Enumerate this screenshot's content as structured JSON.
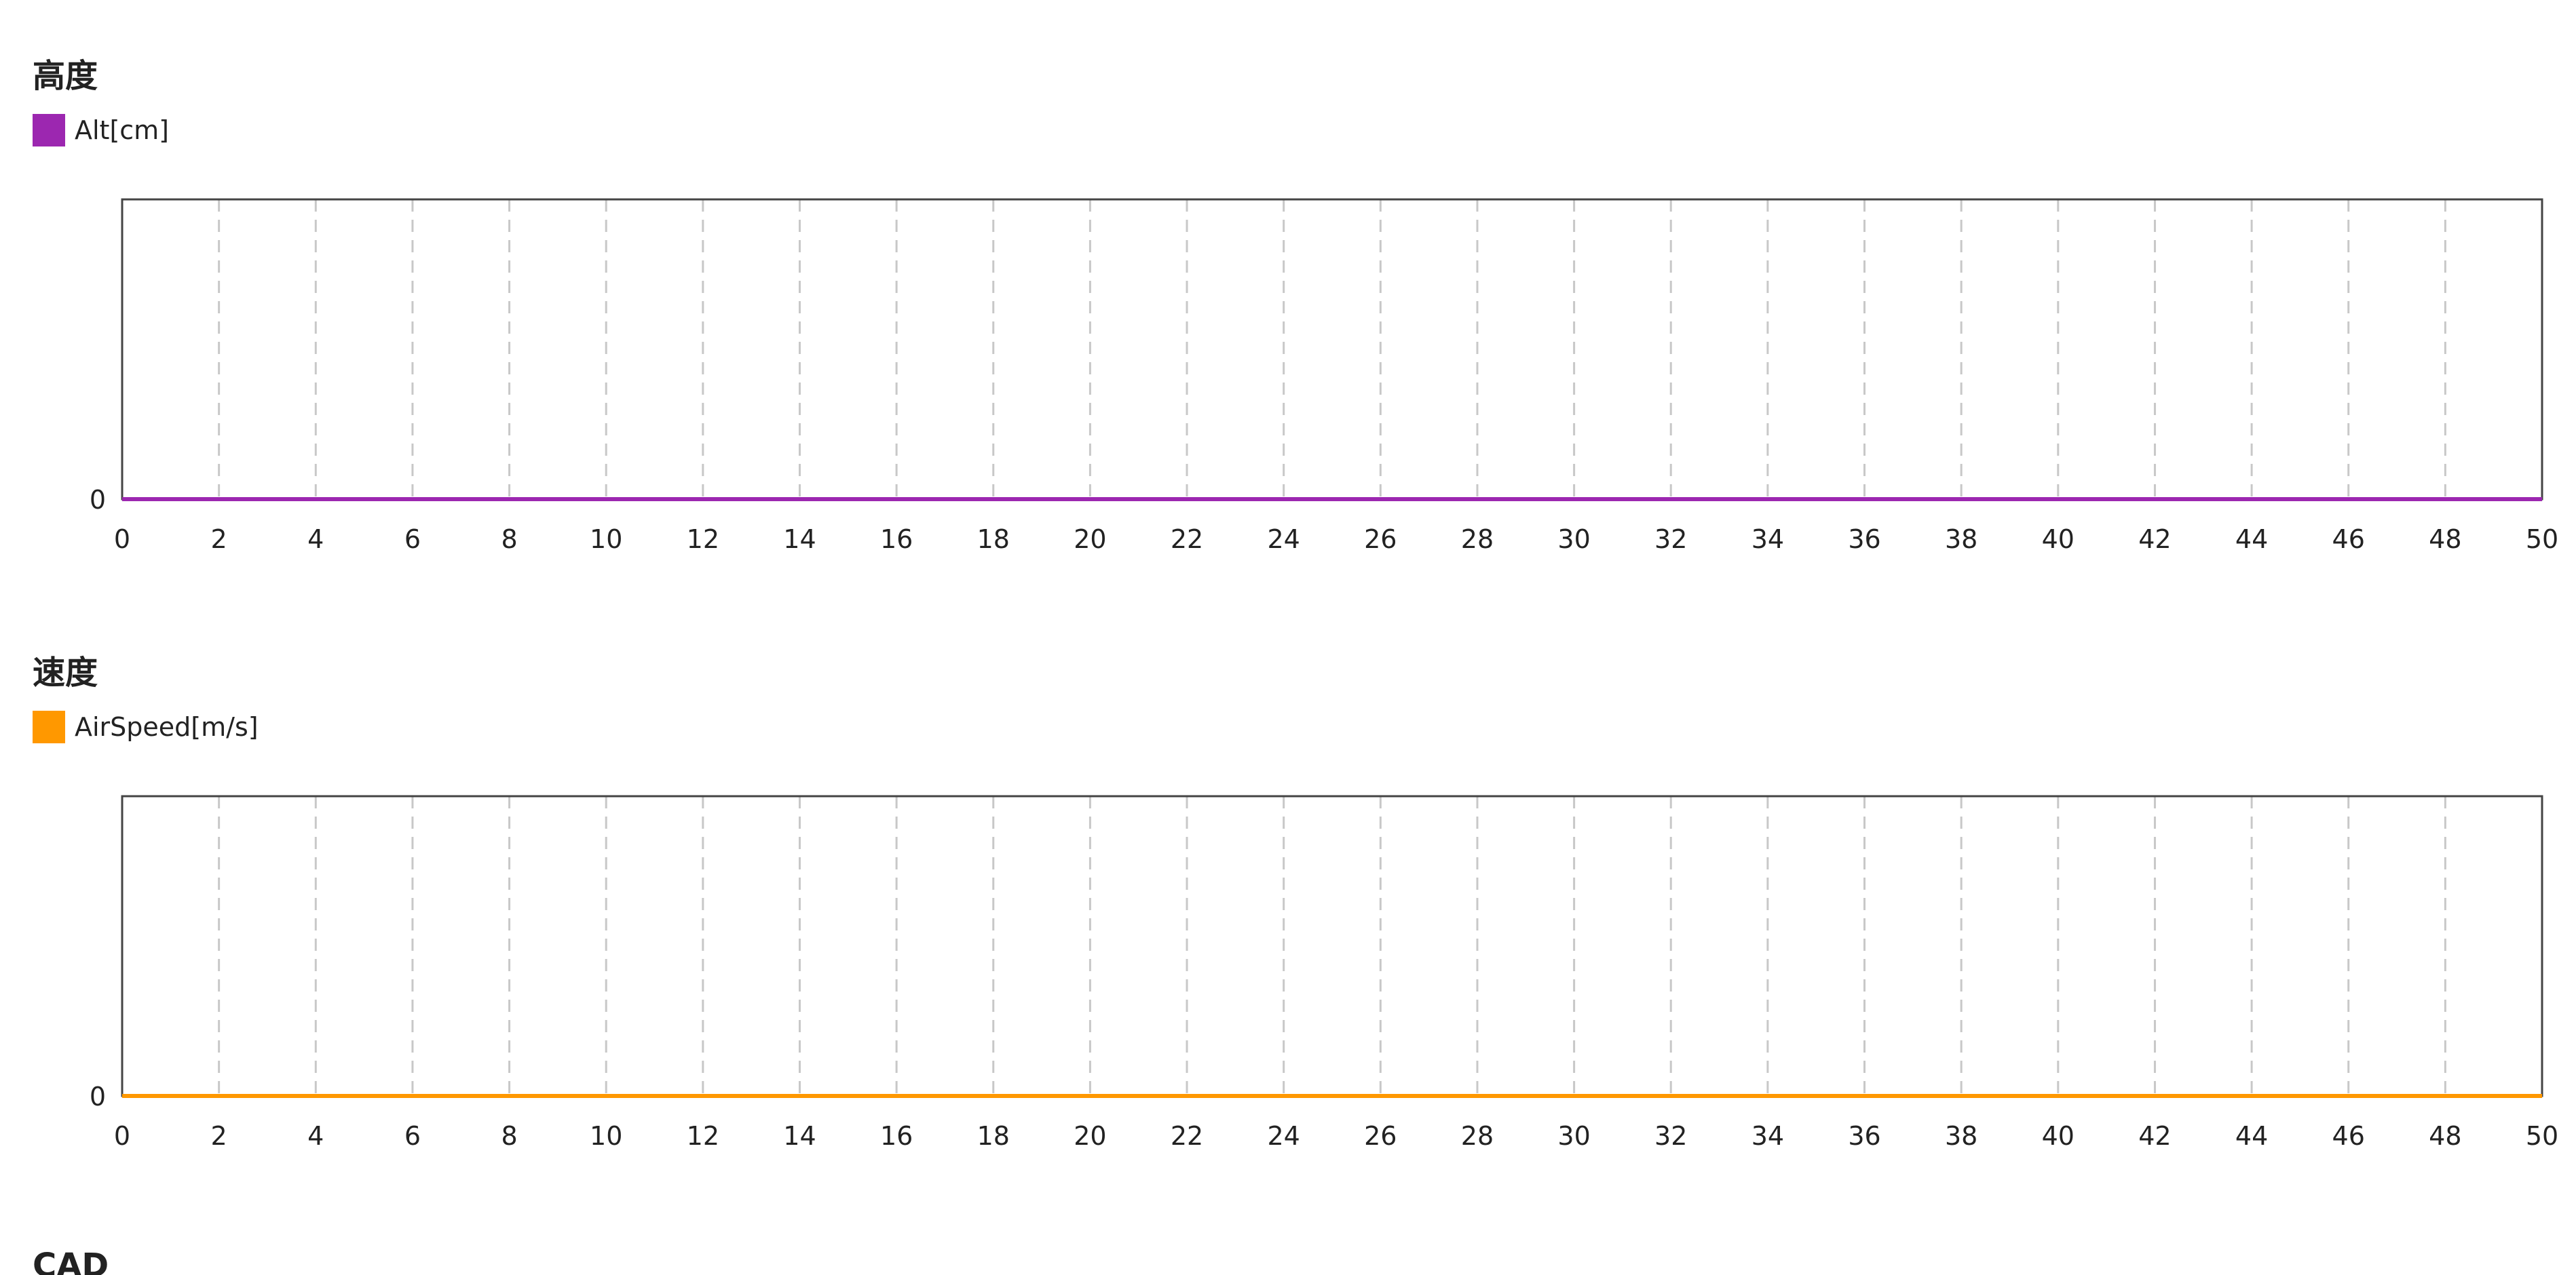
{
  "chart_data": [
    {
      "type": "line",
      "title": "高度",
      "xlabel": "",
      "ylabel": "",
      "x": [
        0,
        50
      ],
      "xlim": [
        0,
        50
      ],
      "xticks": [
        0,
        2,
        4,
        6,
        8,
        10,
        12,
        14,
        16,
        18,
        20,
        22,
        24,
        26,
        28,
        30,
        32,
        34,
        36,
        38,
        40,
        42,
        44,
        46,
        48,
        50
      ],
      "yticks": [
        0
      ],
      "grid": "vertical-dashed",
      "legend": "top-left",
      "series": [
        {
          "name": "Alt[cm]",
          "color": "#9c27b0",
          "values": [
            0,
            0
          ]
        }
      ]
    },
    {
      "type": "line",
      "title": "速度",
      "xlabel": "",
      "ylabel": "",
      "x": [
        0,
        50
      ],
      "xlim": [
        0,
        50
      ],
      "xticks": [
        0,
        2,
        4,
        6,
        8,
        10,
        12,
        14,
        16,
        18,
        20,
        22,
        24,
        26,
        28,
        30,
        32,
        34,
        36,
        38,
        40,
        42,
        44,
        46,
        48,
        50
      ],
      "yticks": [
        0
      ],
      "grid": "vertical-dashed",
      "legend": "top-left",
      "series": [
        {
          "name": "AirSpeed[m/s]",
          "color": "#ff9800",
          "values": [
            0,
            0
          ]
        }
      ]
    }
  ],
  "next_section": {
    "title": "CAD"
  }
}
